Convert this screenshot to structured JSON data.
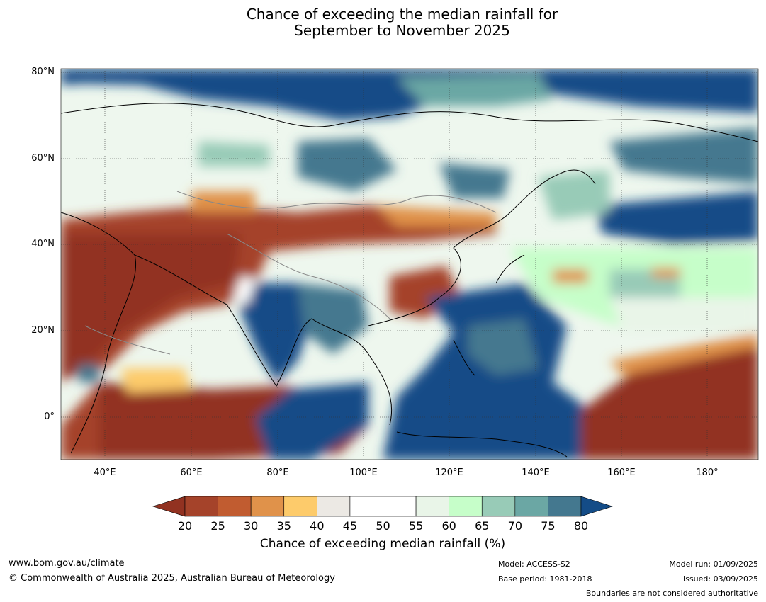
{
  "title": {
    "line1": "Chance of exceeding the median rainfall for",
    "line2": "September to November 2025"
  },
  "map": {
    "lat_labels": [
      "80°N",
      "60°N",
      "40°N",
      "20°N",
      "0°"
    ],
    "lon_labels": [
      "40°E",
      "60°E",
      "80°E",
      "100°E",
      "120°E",
      "140°E",
      "160°E",
      "180°"
    ],
    "extent": {
      "lon": [
        30,
        192
      ],
      "lat": [
        -10,
        80
      ]
    }
  },
  "colorbar": {
    "ticks": [
      "20",
      "25",
      "30",
      "35",
      "40",
      "45",
      "50",
      "55",
      "60",
      "65",
      "70",
      "75",
      "80"
    ],
    "colors": [
      "#a5432a",
      "#c15c30",
      "#e0924a",
      "#fdcb6b",
      "#ece9e4",
      "#ffffff",
      "#ffffff",
      "#e9f5e8",
      "#c6fec9",
      "#98cbb7",
      "#6ba7a4",
      "#44788f"
    ],
    "under_color": "#923221",
    "over_color": "#144c87",
    "label": "Chance of exceeding median rainfall (%)"
  },
  "footer": {
    "url": "www.bom.gov.au/climate",
    "copyright": "© Commonwealth of Australia 2025, Australian Bureau of Meteorology",
    "model": "Model: ACCESS-S2",
    "base_period": "Base period: 1981-2018",
    "model_run": "Model run: 01/09/2025",
    "issued": "Issued: 03/09/2025",
    "disclaimer": "Boundaries are not considered authoritative"
  }
}
